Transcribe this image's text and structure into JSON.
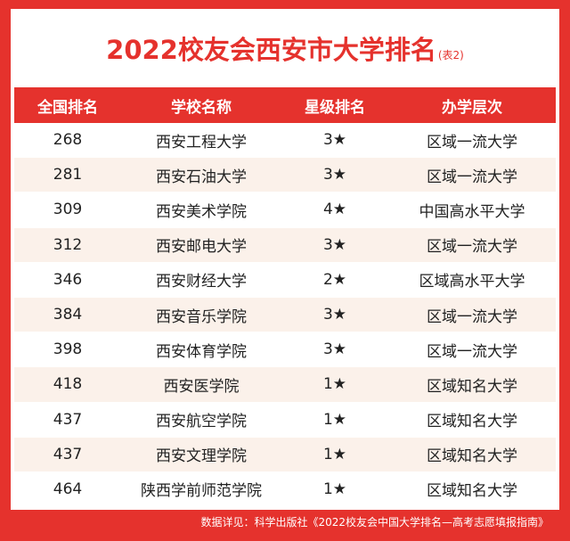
{
  "title": "2022校友会西安市大学排名",
  "title_note": "(表2)",
  "table": {
    "headers": [
      "全国排名",
      "学校名称",
      "星级排名",
      "办学层次"
    ],
    "rows": [
      [
        "268",
        "西安工程大学",
        "3★",
        "区域一流大学"
      ],
      [
        "281",
        "西安石油大学",
        "3★",
        "区域一流大学"
      ],
      [
        "309",
        "西安美术学院",
        "4★",
        "中国高水平大学"
      ],
      [
        "312",
        "西安邮电大学",
        "3★",
        "区域一流大学"
      ],
      [
        "346",
        "西安财经大学",
        "2★",
        "区域高水平大学"
      ],
      [
        "384",
        "西安音乐学院",
        "3★",
        "区域一流大学"
      ],
      [
        "398",
        "西安体育学院",
        "3★",
        "区域一流大学"
      ],
      [
        "418",
        "西安医学院",
        "1★",
        "区域知名大学"
      ],
      [
        "437",
        "西安航空学院",
        "1★",
        "区域知名大学"
      ],
      [
        "437",
        "西安文理学院",
        "1★",
        "区域知名大学"
      ],
      [
        "464",
        "陕西学前师范学院",
        "1★",
        "区域知名大学"
      ]
    ]
  },
  "source": "数据详见：科学出版社《2022校友会中国大学排名—高考志愿填报指南》",
  "colors": {
    "accent": "#e5322d",
    "stripe": "#fbf1ea"
  }
}
